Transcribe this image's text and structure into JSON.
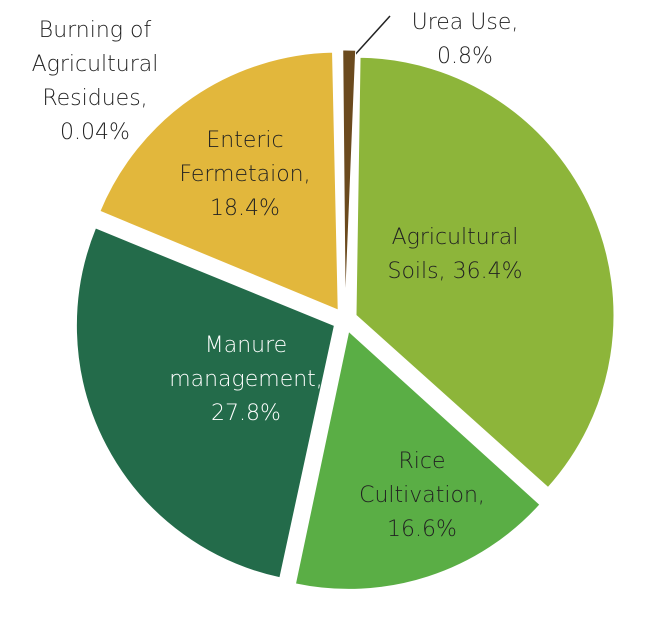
{
  "chart_data": {
    "type": "pie",
    "categories": [
      "Agricultural Soils",
      "Rice Cultivation",
      "Manure management",
      "Enteric Fermetaion",
      "Burning of Agricultural Residues",
      "Urea Use"
    ],
    "values": [
      36.4,
      16.6,
      27.8,
      18.4,
      0.04,
      0.8
    ],
    "value_labels": [
      "36.4%",
      "16.6%",
      "27.8%",
      "18.4%",
      "0.04%",
      "0.8%"
    ],
    "label_separator": ", ",
    "colors": [
      "#8db53a",
      "#5aae45",
      "#236b4a",
      "#e2b73c",
      "#8b5a2b",
      "#6b4a1e"
    ]
  }
}
